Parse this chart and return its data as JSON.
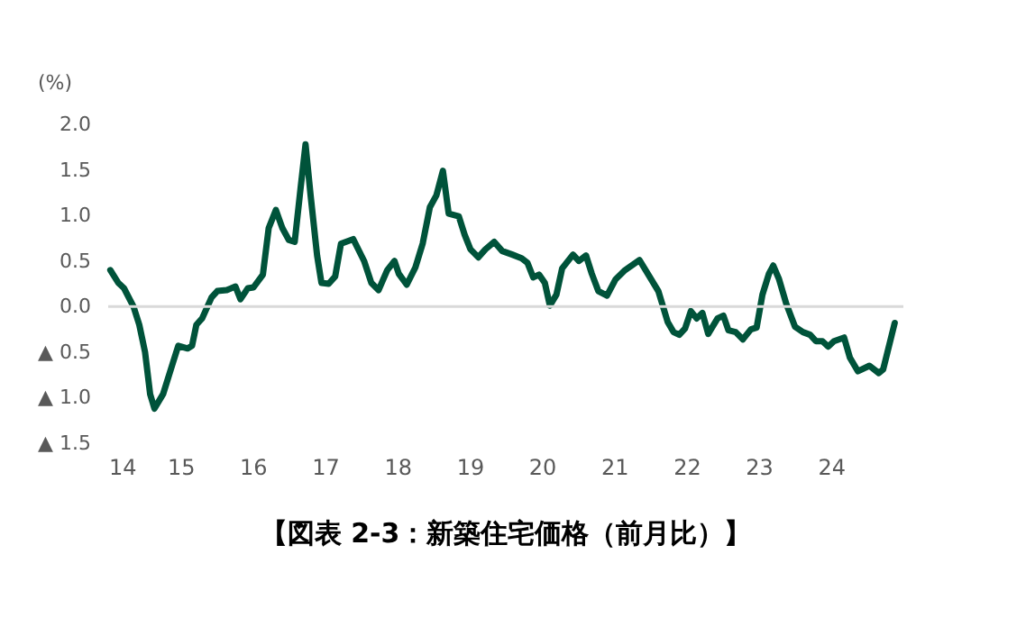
{
  "chart_data": {
    "type": "line",
    "title": "【図表 2-3：新築住宅価格（前月比）】",
    "ylabel": "(%)",
    "series": [
      {
        "color": "#00533a",
        "x": [
          2014.03,
          2014.14,
          2014.22,
          2014.35,
          2014.43,
          2014.51,
          2014.58,
          2014.64,
          2014.76,
          2014.89,
          2014.97,
          2015.1,
          2015.16,
          2015.22,
          2015.3,
          2015.43,
          2015.51,
          2015.64,
          2015.76,
          2015.83,
          2015.93,
          2016.01,
          2016.14,
          2016.22,
          2016.32,
          2016.41,
          2016.5,
          2016.58,
          2016.66,
          2016.73,
          2016.8,
          2016.89,
          2016.95,
          2017.05,
          2017.14,
          2017.22,
          2017.39,
          2017.54,
          2017.64,
          2017.74,
          2017.86,
          2017.96,
          2018.02,
          2018.13,
          2018.25,
          2018.35,
          2018.45,
          2018.54,
          2018.63,
          2018.71,
          2018.85,
          2018.93,
          2019.01,
          2019.12,
          2019.22,
          2019.34,
          2019.45,
          2019.59,
          2019.72,
          2019.8,
          2019.88,
          2019.96,
          2020.04,
          2020.11,
          2020.2,
          2020.28,
          2020.43,
          2020.51,
          2020.61,
          2020.69,
          2020.78,
          2020.9,
          2021.02,
          2021.15,
          2021.35,
          2021.61,
          2021.74,
          2021.82,
          2021.9,
          2021.98,
          2022.06,
          2022.14,
          2022.22,
          2022.3,
          2022.43,
          2022.51,
          2022.58,
          2022.68,
          2022.78,
          2022.89,
          2022.97,
          2023.05,
          2023.14,
          2023.2,
          2023.28,
          2023.38,
          2023.5,
          2023.61,
          2023.71,
          2023.79,
          2023.88,
          2023.96,
          2024.04,
          2024.18,
          2024.26,
          2024.37,
          2024.53,
          2024.66,
          2024.72,
          2024.78,
          2024.88
        ],
        "values": [
          0.4,
          0.26,
          0.2,
          0.0,
          -0.2,
          -0.5,
          -0.96,
          -1.12,
          -0.96,
          -0.63,
          -0.43,
          -0.46,
          -0.43,
          -0.2,
          -0.13,
          0.1,
          0.17,
          0.18,
          0.22,
          0.08,
          0.2,
          0.21,
          0.35,
          0.86,
          1.06,
          0.86,
          0.73,
          0.71,
          1.29,
          1.78,
          1.22,
          0.56,
          0.26,
          0.25,
          0.33,
          0.69,
          0.74,
          0.5,
          0.26,
          0.18,
          0.4,
          0.5,
          0.36,
          0.24,
          0.43,
          0.69,
          1.09,
          1.22,
          1.49,
          1.02,
          0.99,
          0.79,
          0.63,
          0.54,
          0.63,
          0.71,
          0.61,
          0.57,
          0.53,
          0.48,
          0.32,
          0.35,
          0.26,
          0.01,
          0.13,
          0.42,
          0.57,
          0.5,
          0.56,
          0.36,
          0.17,
          0.12,
          0.3,
          0.4,
          0.51,
          0.17,
          -0.17,
          -0.28,
          -0.31,
          -0.24,
          -0.05,
          -0.13,
          -0.07,
          -0.3,
          -0.13,
          -0.1,
          -0.26,
          -0.28,
          -0.36,
          -0.25,
          -0.23,
          0.13,
          0.36,
          0.45,
          0.3,
          0.03,
          -0.22,
          -0.28,
          -0.31,
          -0.38,
          -0.38,
          -0.44,
          -0.38,
          -0.34,
          -0.56,
          -0.71,
          -0.65,
          -0.73,
          -0.69,
          -0.5,
          -0.18
        ]
      }
    ],
    "xlim": [
      2014,
      2025
    ],
    "xticks": [
      {
        "value": 2014,
        "label": "14"
      },
      {
        "value": 2015,
        "label": "15"
      },
      {
        "value": 2016,
        "label": "16"
      },
      {
        "value": 2017,
        "label": "17"
      },
      {
        "value": 2018,
        "label": "18"
      },
      {
        "value": 2019,
        "label": "19"
      },
      {
        "value": 2020,
        "label": "20"
      },
      {
        "value": 2021,
        "label": "21"
      },
      {
        "value": 2022,
        "label": "22"
      },
      {
        "value": 2023,
        "label": "23"
      },
      {
        "value": 2024,
        "label": "24"
      }
    ],
    "ylim": [
      -1.5,
      2.0
    ],
    "yticks": [
      {
        "value": 2.0,
        "label": "2.0"
      },
      {
        "value": 1.5,
        "label": "1.5"
      },
      {
        "value": 1.0,
        "label": "1.0"
      },
      {
        "value": 0.5,
        "label": "0.5"
      },
      {
        "value": 0.0,
        "label": "0.0"
      },
      {
        "value": -0.5,
        "label": "▲ 0.5"
      },
      {
        "value": -1.0,
        "label": "▲ 1.0"
      },
      {
        "value": -1.5,
        "label": "▲ 1.5"
      }
    ],
    "ref_lines": [
      {
        "axis": "y",
        "value": 0,
        "color": "#d9d9d9"
      }
    ],
    "grid": false,
    "legend": false,
    "line_style": "solid",
    "marker": "none"
  }
}
